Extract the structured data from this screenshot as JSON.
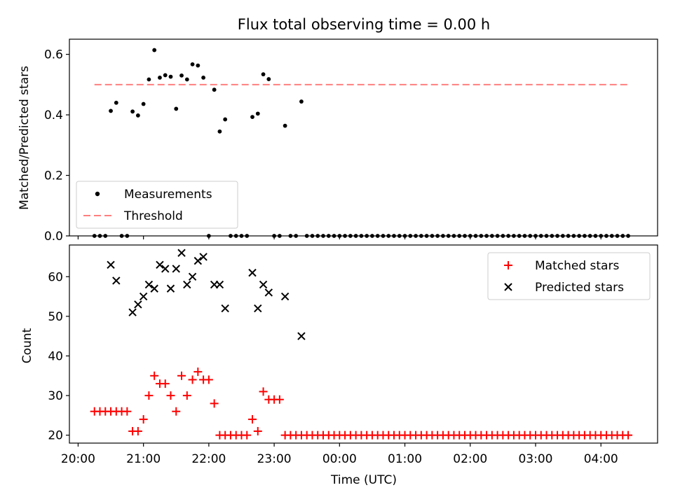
{
  "title": "Flux total observing time = 0.00 h",
  "colors": {
    "measurement": "#000000",
    "threshold": "#ff7f7f",
    "matched": "#ff0000",
    "predicted": "#000000"
  },
  "chart_data": [
    {
      "type": "scatter",
      "panel": "top",
      "title": "Flux total observing time = 0.00 h",
      "xlabel": "",
      "ylabel": "Matched/Predicted stars",
      "xlim": [
        "19:52",
        "04:52"
      ],
      "ylim": [
        0,
        0.65
      ],
      "yticks": [
        0.0,
        0.2,
        0.4,
        0.6
      ],
      "ytick_labels": [
        "0.0",
        "0.2",
        "0.4",
        "0.6"
      ],
      "legend_position": "lower-left",
      "series": [
        {
          "name": "Measurements",
          "marker": "dot",
          "points": [
            [
              "20:15",
              0
            ],
            [
              "20:20",
              0
            ],
            [
              "20:25",
              0
            ],
            [
              "20:30",
              0.413
            ],
            [
              "20:35",
              0.44
            ],
            [
              "20:40",
              0
            ],
            [
              "20:45",
              0
            ],
            [
              "20:50",
              0.411
            ],
            [
              "20:55",
              0.398
            ],
            [
              "21:00",
              0.436
            ],
            [
              "21:05",
              0.517
            ],
            [
              "21:10",
              0.614
            ],
            [
              "21:15",
              0.523
            ],
            [
              "21:20",
              0.531
            ],
            [
              "21:25",
              0.526
            ],
            [
              "21:30",
              0.42
            ],
            [
              "21:35",
              0.53
            ],
            [
              "21:40",
              0.517
            ],
            [
              "21:45",
              0.567
            ],
            [
              "21:50",
              0.563
            ],
            [
              "21:55",
              0.523
            ],
            [
              "22:00",
              0
            ],
            [
              "22:05",
              0.483
            ],
            [
              "22:10",
              0.345
            ],
            [
              "22:15",
              0.385
            ],
            [
              "22:20",
              0
            ],
            [
              "22:25",
              0
            ],
            [
              "22:30",
              0
            ],
            [
              "22:35",
              0
            ],
            [
              "22:40",
              0.393
            ],
            [
              "22:45",
              0.404
            ],
            [
              "22:50",
              0.534
            ],
            [
              "22:55",
              0.518
            ],
            [
              "23:00",
              0
            ],
            [
              "23:05",
              0
            ],
            [
              "23:10",
              0.364
            ],
            [
              "23:15",
              0
            ],
            [
              "23:20",
              0
            ],
            [
              "23:25",
              0.444
            ],
            [
              "23:30",
              0
            ],
            [
              "23:35",
              0
            ],
            [
              "23:40",
              0
            ],
            [
              "23:45",
              0
            ],
            [
              "23:50",
              0
            ],
            [
              "23:55",
              0
            ],
            [
              "00:00",
              0
            ],
            [
              "00:05",
              0
            ],
            [
              "00:10",
              0
            ],
            [
              "00:15",
              0
            ],
            [
              "00:20",
              0
            ],
            [
              "00:25",
              0
            ],
            [
              "00:30",
              0
            ],
            [
              "00:35",
              0
            ],
            [
              "00:40",
              0
            ],
            [
              "00:45",
              0
            ],
            [
              "00:50",
              0
            ],
            [
              "00:55",
              0
            ],
            [
              "01:00",
              0
            ],
            [
              "01:05",
              0
            ],
            [
              "01:10",
              0
            ],
            [
              "01:15",
              0
            ],
            [
              "01:20",
              0
            ],
            [
              "01:25",
              0
            ],
            [
              "01:30",
              0
            ],
            [
              "01:35",
              0
            ],
            [
              "01:40",
              0
            ],
            [
              "01:45",
              0
            ],
            [
              "01:50",
              0
            ],
            [
              "01:55",
              0
            ],
            [
              "02:00",
              0
            ],
            [
              "02:05",
              0
            ],
            [
              "02:10",
              0
            ],
            [
              "02:15",
              0
            ],
            [
              "02:20",
              0
            ],
            [
              "02:25",
              0
            ],
            [
              "02:30",
              0
            ],
            [
              "02:35",
              0
            ],
            [
              "02:40",
              0
            ],
            [
              "02:45",
              0
            ],
            [
              "02:50",
              0
            ],
            [
              "02:55",
              0
            ],
            [
              "03:00",
              0
            ],
            [
              "03:05",
              0
            ],
            [
              "03:10",
              0
            ],
            [
              "03:15",
              0
            ],
            [
              "03:20",
              0
            ],
            [
              "03:25",
              0
            ],
            [
              "03:30",
              0
            ],
            [
              "03:35",
              0
            ],
            [
              "03:40",
              0
            ],
            [
              "03:45",
              0
            ],
            [
              "03:50",
              0
            ],
            [
              "03:55",
              0
            ],
            [
              "04:00",
              0
            ],
            [
              "04:05",
              0
            ],
            [
              "04:10",
              0
            ],
            [
              "04:15",
              0
            ],
            [
              "04:20",
              0
            ],
            [
              "04:25",
              0
            ]
          ]
        },
        {
          "name": "Threshold",
          "marker": "dashed-line",
          "points": [
            [
              "20:15",
              0.5
            ],
            [
              "04:25",
              0.5
            ]
          ]
        }
      ]
    },
    {
      "type": "scatter",
      "panel": "bottom",
      "xlabel": "Time (UTC)",
      "ylabel": "Count",
      "xlim": [
        "19:52",
        "04:52"
      ],
      "ylim": [
        18,
        68
      ],
      "xticks": [
        "20:00",
        "21:00",
        "22:00",
        "23:00",
        "00:00",
        "01:00",
        "02:00",
        "03:00",
        "04:00"
      ],
      "yticks": [
        20,
        30,
        40,
        50,
        60
      ],
      "ytick_labels": [
        "20",
        "30",
        "40",
        "50",
        "60"
      ],
      "legend_position": "upper-right",
      "series": [
        {
          "name": "Matched stars",
          "marker": "plus",
          "points": [
            [
              "20:15",
              26
            ],
            [
              "20:20",
              26
            ],
            [
              "20:25",
              26
            ],
            [
              "20:30",
              26
            ],
            [
              "20:35",
              26
            ],
            [
              "20:40",
              26
            ],
            [
              "20:45",
              26
            ],
            [
              "20:50",
              21
            ],
            [
              "20:55",
              21
            ],
            [
              "21:00",
              24
            ],
            [
              "21:05",
              30
            ],
            [
              "21:10",
              35
            ],
            [
              "21:15",
              33
            ],
            [
              "21:20",
              33
            ],
            [
              "21:25",
              30
            ],
            [
              "21:30",
              26
            ],
            [
              "21:35",
              35
            ],
            [
              "21:40",
              30
            ],
            [
              "21:45",
              34
            ],
            [
              "21:50",
              36
            ],
            [
              "21:55",
              34
            ],
            [
              "22:00",
              34
            ],
            [
              "22:05",
              28
            ],
            [
              "22:10",
              20
            ],
            [
              "22:15",
              20
            ],
            [
              "22:20",
              20
            ],
            [
              "22:25",
              20
            ],
            [
              "22:30",
              20
            ],
            [
              "22:35",
              20
            ],
            [
              "22:40",
              24
            ],
            [
              "22:45",
              21
            ],
            [
              "22:50",
              31
            ],
            [
              "22:55",
              29
            ],
            [
              "23:00",
              29
            ],
            [
              "23:05",
              29
            ],
            [
              "23:10",
              20
            ],
            [
              "23:15",
              20
            ],
            [
              "23:20",
              20
            ],
            [
              "23:25",
              20
            ],
            [
              "23:30",
              20
            ],
            [
              "23:35",
              20
            ],
            [
              "23:40",
              20
            ],
            [
              "23:45",
              20
            ],
            [
              "23:50",
              20
            ],
            [
              "23:55",
              20
            ],
            [
              "00:00",
              20
            ],
            [
              "00:05",
              20
            ],
            [
              "00:10",
              20
            ],
            [
              "00:15",
              20
            ],
            [
              "00:20",
              20
            ],
            [
              "00:25",
              20
            ],
            [
              "00:30",
              20
            ],
            [
              "00:35",
              20
            ],
            [
              "00:40",
              20
            ],
            [
              "00:45",
              20
            ],
            [
              "00:50",
              20
            ],
            [
              "00:55",
              20
            ],
            [
              "01:00",
              20
            ],
            [
              "01:05",
              20
            ],
            [
              "01:10",
              20
            ],
            [
              "01:15",
              20
            ],
            [
              "01:20",
              20
            ],
            [
              "01:25",
              20
            ],
            [
              "01:30",
              20
            ],
            [
              "01:35",
              20
            ],
            [
              "01:40",
              20
            ],
            [
              "01:45",
              20
            ],
            [
              "01:50",
              20
            ],
            [
              "01:55",
              20
            ],
            [
              "02:00",
              20
            ],
            [
              "02:05",
              20
            ],
            [
              "02:10",
              20
            ],
            [
              "02:15",
              20
            ],
            [
              "02:20",
              20
            ],
            [
              "02:25",
              20
            ],
            [
              "02:30",
              20
            ],
            [
              "02:35",
              20
            ],
            [
              "02:40",
              20
            ],
            [
              "02:45",
              20
            ],
            [
              "02:50",
              20
            ],
            [
              "02:55",
              20
            ],
            [
              "03:00",
              20
            ],
            [
              "03:05",
              20
            ],
            [
              "03:10",
              20
            ],
            [
              "03:15",
              20
            ],
            [
              "03:20",
              20
            ],
            [
              "03:25",
              20
            ],
            [
              "03:30",
              20
            ],
            [
              "03:35",
              20
            ],
            [
              "03:40",
              20
            ],
            [
              "03:45",
              20
            ],
            [
              "03:50",
              20
            ],
            [
              "03:55",
              20
            ],
            [
              "04:00",
              20
            ],
            [
              "04:05",
              20
            ],
            [
              "04:10",
              20
            ],
            [
              "04:15",
              20
            ],
            [
              "04:20",
              20
            ],
            [
              "04:25",
              20
            ]
          ]
        },
        {
          "name": "Predicted stars",
          "marker": "x",
          "points": [
            [
              "20:30",
              63
            ],
            [
              "20:35",
              59
            ],
            [
              "20:50",
              51
            ],
            [
              "20:55",
              53
            ],
            [
              "21:00",
              55
            ],
            [
              "21:05",
              58
            ],
            [
              "21:10",
              57
            ],
            [
              "21:15",
              63
            ],
            [
              "21:20",
              62
            ],
            [
              "21:25",
              57
            ],
            [
              "21:30",
              62
            ],
            [
              "21:35",
              66
            ],
            [
              "21:40",
              58
            ],
            [
              "21:45",
              60
            ],
            [
              "21:50",
              64
            ],
            [
              "21:55",
              65
            ],
            [
              "22:05",
              58
            ],
            [
              "22:10",
              58
            ],
            [
              "22:15",
              52
            ],
            [
              "22:40",
              61
            ],
            [
              "22:45",
              52
            ],
            [
              "22:50",
              58
            ],
            [
              "22:55",
              56
            ],
            [
              "23:10",
              55
            ],
            [
              "23:25",
              45
            ]
          ]
        }
      ]
    }
  ]
}
